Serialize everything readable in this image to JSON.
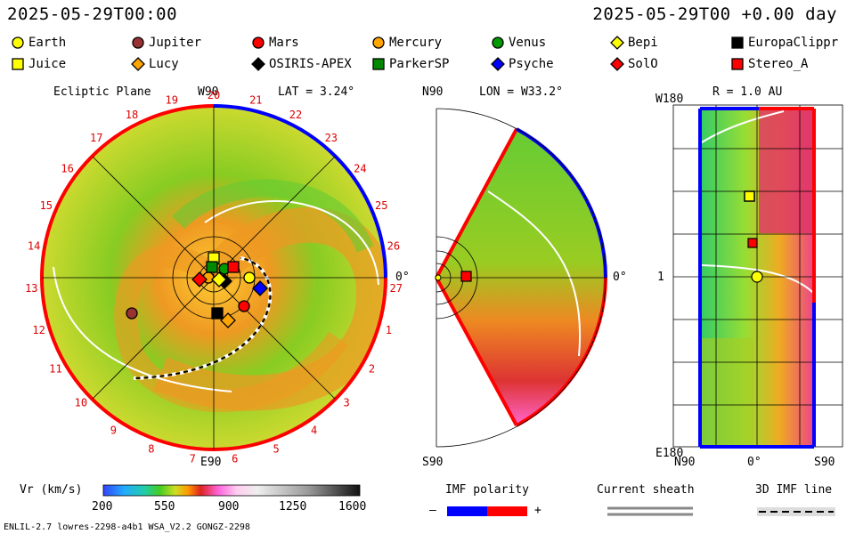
{
  "header": {
    "left": "2025-05-29T00:00",
    "right": "2025-05-29T00 +0.00 day"
  },
  "legend": [
    {
      "name": "Earth",
      "color": "#ffff00",
      "shape": "circle"
    },
    {
      "name": "Jupiter",
      "color": "#993333",
      "shape": "circle"
    },
    {
      "name": "Mars",
      "color": "#ff0000",
      "shape": "circle"
    },
    {
      "name": "Mercury",
      "color": "#ffa500",
      "shape": "circle"
    },
    {
      "name": "Venus",
      "color": "#009900",
      "shape": "circle"
    },
    {
      "name": "Bepi",
      "color": "#ffff00",
      "shape": "diamond"
    },
    {
      "name": "EuropaClippr",
      "color": "#000000",
      "shape": "square"
    },
    {
      "name": "Juice",
      "color": "#ffff00",
      "shape": "square"
    },
    {
      "name": "Lucy",
      "color": "#ffa500",
      "shape": "diamond"
    },
    {
      "name": "OSIRIS-APEX",
      "color": "#000000",
      "shape": "diamond"
    },
    {
      "name": "ParkerSP",
      "color": "#008800",
      "shape": "square"
    },
    {
      "name": "Psyche",
      "color": "#0000ff",
      "shape": "diamond"
    },
    {
      "name": "SolO",
      "color": "#ff0000",
      "shape": "diamond"
    },
    {
      "name": "Stereo_A",
      "color": "#ff0000",
      "shape": "square"
    }
  ],
  "panels": {
    "ecliptic": {
      "title": "Ecliptic Plane",
      "top": "W90",
      "lat": "LAT = 3.24°",
      "right": "0°",
      "bottom": "E90"
    },
    "meridional": {
      "top": "N90",
      "lon": "LON = W33.2°",
      "right": "0°",
      "bottom": "S90"
    },
    "radial": {
      "r": "R = 1.0 AU",
      "top": "W180",
      "mid": "1",
      "bottom": "E180",
      "xticks": [
        "N90",
        "0°",
        "S90"
      ]
    }
  },
  "colorbar": {
    "label": "Vr (km/s)",
    "ticks": [
      "200",
      "550",
      "900",
      "1250",
      "1600"
    ]
  },
  "imf": {
    "label": "IMF polarity",
    "minus": "–",
    "plus": "+"
  },
  "sheath": {
    "label": "Current sheath"
  },
  "line3d": {
    "label": "3D IMF line"
  },
  "footer": {
    "left": "ENLIL-2.7 lowres-2298-a4b1 WSA_V2.2 GONGZ-2298"
  },
  "chart_data": {
    "type": "heatmap",
    "variable": "Vr (km/s)",
    "range": [
      200,
      1600
    ],
    "carrington_ticks": [
      "20",
      "21",
      "22",
      "23",
      "24",
      "25",
      "26",
      "27",
      "1",
      "2",
      "3",
      "4",
      "5",
      "6",
      "7",
      "8",
      "9",
      "10",
      "11",
      "12",
      "13",
      "14",
      "15",
      "16",
      "17",
      "18",
      "19"
    ],
    "bodies": [
      {
        "name": "Earth",
        "x": 1.0,
        "y": 0.0
      },
      {
        "name": "Mars",
        "x": 0.85,
        "y": -0.8
      },
      {
        "name": "Mercury",
        "x": -0.15,
        "y": 0.0
      },
      {
        "name": "Venus",
        "x": 0.3,
        "y": 0.25
      },
      {
        "name": "Jupiter",
        "x": -2.3,
        "y": -1.0
      },
      {
        "name": "Juice",
        "x": 0.0,
        "y": 0.55
      },
      {
        "name": "Lucy",
        "x": 0.4,
        "y": -1.2
      },
      {
        "name": "OSIRIS-APEX",
        "x": 0.3,
        "y": -0.1
      },
      {
        "name": "ParkerSP",
        "x": -0.05,
        "y": 0.3
      },
      {
        "name": "Psyche",
        "x": 1.3,
        "y": -0.3
      },
      {
        "name": "SolO",
        "x": -0.4,
        "y": -0.05
      },
      {
        "name": "Stereo_A",
        "x": 0.55,
        "y": 0.3
      },
      {
        "name": "EuropaClippr",
        "x": 0.1,
        "y": -1.0
      },
      {
        "name": "Bepi",
        "x": 0.15,
        "y": -0.05
      }
    ]
  }
}
